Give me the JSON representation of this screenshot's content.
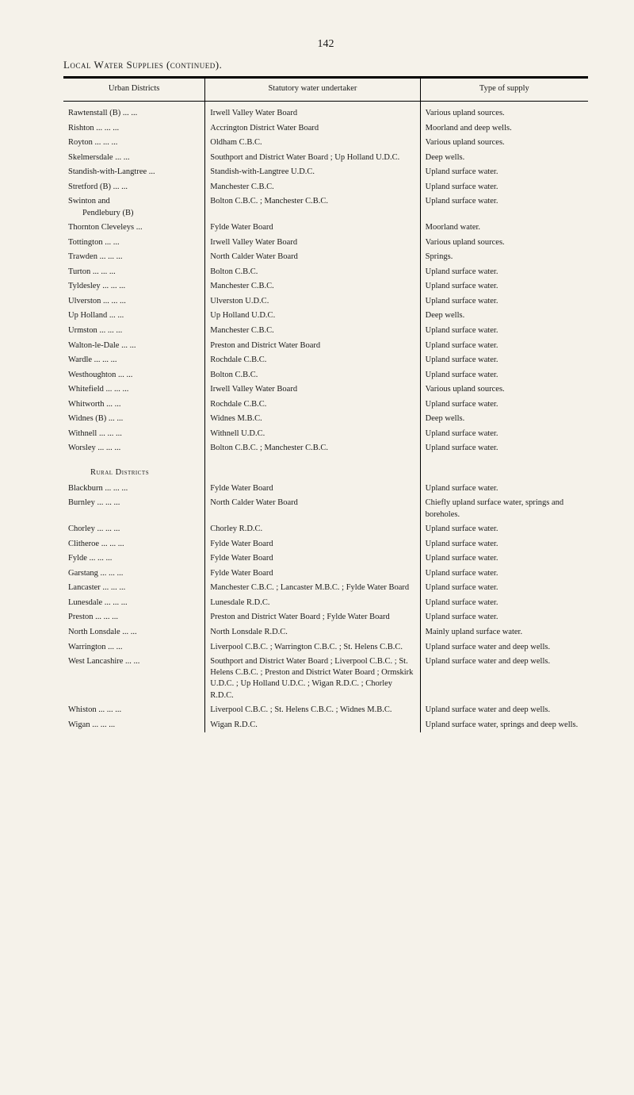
{
  "page_number": "142",
  "caption": "Local Water Supplies (continued).",
  "section_label": "Rural Districts",
  "columns": {
    "width_a": "27%",
    "width_b": "41%",
    "width_c": "32%",
    "headers": [
      "Urban Districts",
      "Statutory water undertaker",
      "Type of supply"
    ]
  },
  "urban_rows": [
    {
      "a": "Rawtenstall (B)  ...     ...",
      "b": "Irwell Valley Water Board",
      "c": "Various upland sources."
    },
    {
      "a": "Rishton     ...     ...     ...",
      "b": "Accrington District Water Board",
      "c": "Moorland and deep wells."
    },
    {
      "a": "Royton     ...     ...     ...",
      "b": "Oldham C.B.C.",
      "c": "Various upland sources."
    },
    {
      "a": "Skelmersdale        ...     ...",
      "b": "Southport and District Water Board ; Up Holland U.D.C.",
      "c": "Deep wells."
    },
    {
      "a": "Standish-with-Langtree ...",
      "b": "Standish-with-Langtree U.D.C.",
      "c": "Upland surface water."
    },
    {
      "a": "Stretford (B)        ...     ...",
      "b": "Manchester C.B.C.",
      "c": "Upland surface water."
    },
    {
      "a": "Swinton and\n  Pendlebury (B)",
      "b": "Bolton C.B.C. ; Manchester C.B.C.",
      "c": "Upland surface water."
    },
    {
      "a": "Thornton Cleveleys     ...",
      "b": "Fylde Water Board",
      "c": "Moorland water."
    },
    {
      "a": "Tottington        ...     ...",
      "b": "Irwell Valley Water Board",
      "c": "Various upland sources."
    },
    {
      "a": "Trawden  ...     ...     ...",
      "b": "North Calder Water Board",
      "c": "Springs."
    },
    {
      "a": "Turton     ...     ...     ...",
      "b": "Bolton C.B.C.",
      "c": "Upland surface water."
    },
    {
      "a": "Tyldesley ...     ...     ...",
      "b": "Manchester C.B.C.",
      "c": "Upland surface water."
    },
    {
      "a": "Ulverston ...     ...     ...",
      "b": "Ulverston U.D.C.",
      "c": "Upland surface water."
    },
    {
      "a": "Up Holland        ...     ...",
      "b": "Up Holland U.D.C.",
      "c": "Deep wells."
    },
    {
      "a": "Urmston  ...     ...     ...",
      "b": "Manchester C.B.C.",
      "c": "Upland surface water."
    },
    {
      "a": "Walton-le-Dale   ...     ...",
      "b": "Preston and District Water Board",
      "c": "Upland surface water."
    },
    {
      "a": "Wardle     ...     ...     ...",
      "b": "Rochdale C.B.C.",
      "c": "Upland surface water."
    },
    {
      "a": "Westhoughton     ...     ...",
      "b": "Bolton C.B.C.",
      "c": "Upland surface water."
    },
    {
      "a": "Whitefield ...     ...     ...",
      "b": "Irwell Valley Water Board",
      "c": "Various upland sources."
    },
    {
      "a": "Whitworth        ...     ...",
      "b": "Rochdale C.B.C.",
      "c": "Upland surface water."
    },
    {
      "a": "Widnes (B)        ...     ...",
      "b": "Widnes M.B.C.",
      "c": "Deep wells."
    },
    {
      "a": "Withnell  ...     ...     ...",
      "b": "Withnell U.D.C.",
      "c": "Upland surface water."
    },
    {
      "a": "Worsley   ...     ...     ...",
      "b": "Bolton C.B.C. ; Manchester C.B.C.",
      "c": "Upland surface water."
    }
  ],
  "rural_rows": [
    {
      "a": "Blackburn ...     ...     ...",
      "b": "Fylde Water Board",
      "c": "Upland surface water."
    },
    {
      "a": "Burnley    ...     ...     ...",
      "b": "North Calder Water Board",
      "c": "Chiefly upland surface water, springs and boreholes."
    },
    {
      "a": "Chorley    ...     ...     ...",
      "b": "Chorley R.D.C.",
      "c": "Upland surface water."
    },
    {
      "a": "Clitheroe  ...     ...     ...",
      "b": "Fylde Water Board",
      "c": "Upland surface water."
    },
    {
      "a": "Fylde       ...     ...     ...",
      "b": "Fylde Water Board",
      "c": "Upland surface water."
    },
    {
      "a": "Garstang  ...     ...     ...",
      "b": "Fylde Water Board",
      "c": "Upland surface water."
    },
    {
      "a": "Lancaster ...     ...     ...",
      "b": "Manchester C.B.C. ; Lancaster M.B.C. ; Fylde Water Board",
      "c": "Upland surface water."
    },
    {
      "a": "Lunesdale ...     ...     ...",
      "b": "Lunesdale R.D.C.",
      "c": "Upland surface water."
    },
    {
      "a": "Preston    ...     ...     ...",
      "b": "Preston and District Water Board ; Fylde Water Board",
      "c": "Upland surface water."
    },
    {
      "a": "North Lonsdale  ...     ...",
      "b": "North Lonsdale R.D.C.",
      "c": "Mainly upland surface water."
    },
    {
      "a": "Warrington        ...     ...",
      "b": "Liverpool C.B.C. ; Warrington C.B.C. ; St. Helens C.B.C.",
      "c": "Upland surface water and deep wells."
    },
    {
      "a": "West Lancashire ...     ...",
      "b": "Southport and District Water Board ; Liverpool C.B.C. ; St. Helens C.B.C. ; Preston and District Water Board ; Ormskirk U.D.C. ; Up Holland U.D.C. ; Wigan R.D.C. ; Chorley R.D.C.",
      "c": "Upland surface water and deep wells."
    },
    {
      "a": "Whiston   ...     ...     ...",
      "b": "Liverpool C.B.C. ; St. Helens C.B.C. ; Widnes M.B.C.",
      "c": "Upland surface water and deep wells."
    },
    {
      "a": "Wigan      ...     ...     ...",
      "b": "Wigan R.D.C.",
      "c": "Upland surface water, springs and deep wells."
    }
  ]
}
